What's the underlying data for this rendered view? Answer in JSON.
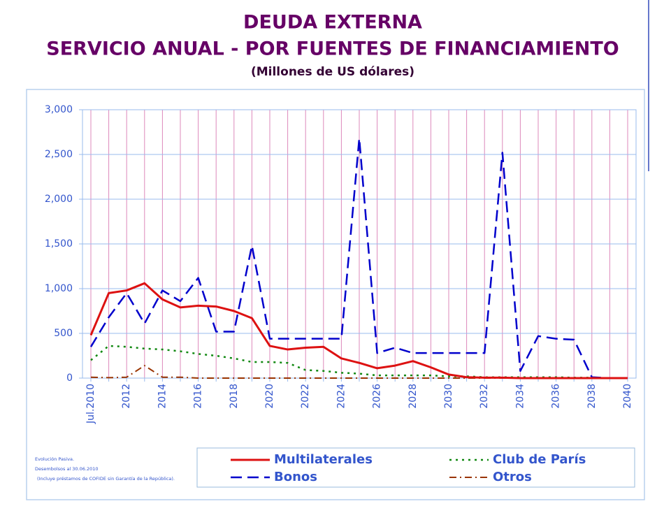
{
  "chart_data": {
    "type": "line",
    "title": "DEUDA EXTERNA",
    "subtitle": "SERVICIO ANUAL - POR FUENTES DE FINANCIAMIENTO",
    "unit_note": "(Millones de US dólares)",
    "categories": [
      "Jul.2010",
      null,
      "2012",
      null,
      "2014",
      null,
      "2016",
      null,
      "2018",
      null,
      "2020",
      null,
      "2022",
      null,
      "2024",
      null,
      "2026",
      null,
      "2028",
      null,
      "2030",
      null,
      "2032",
      null,
      "2034",
      null,
      "2036",
      null,
      "2038",
      null,
      "2040"
    ],
    "series": [
      {
        "name": "Multilaterales",
        "color": "#dd1111",
        "values": [
          480,
          950,
          980,
          1060,
          880,
          790,
          810,
          800,
          750,
          670,
          360,
          320,
          340,
          350,
          220,
          170,
          110,
          140,
          190,
          120,
          40,
          10,
          5,
          5,
          0,
          0,
          0,
          0,
          0,
          0,
          0
        ]
      },
      {
        "name": "Club de París",
        "color": "#118811",
        "values": [
          200,
          360,
          350,
          330,
          320,
          300,
          270,
          250,
          220,
          180,
          180,
          170,
          90,
          80,
          60,
          50,
          30,
          30,
          30,
          30,
          20,
          20,
          10,
          10,
          10,
          10,
          10,
          5,
          5,
          0,
          0
        ]
      },
      {
        "name": "Bonos",
        "color": "#0000cc",
        "values": [
          350,
          680,
          950,
          610,
          980,
          860,
          1120,
          520,
          520,
          1480,
          440,
          440,
          440,
          440,
          440,
          2680,
          280,
          340,
          280,
          280,
          280,
          280,
          280,
          2520,
          80,
          470,
          440,
          430,
          10,
          0,
          0
        ]
      },
      {
        "name": "Otros",
        "color": "#993300",
        "values": [
          10,
          5,
          10,
          140,
          10,
          10,
          0,
          0,
          0,
          0,
          0,
          0,
          0,
          0,
          0,
          0,
          0,
          0,
          0,
          0,
          0,
          0,
          0,
          0,
          0,
          0,
          0,
          0,
          0,
          0,
          0
        ]
      }
    ],
    "ylim": [
      0,
      3000
    ],
    "yticks": [
      0,
      500,
      {
        "value": 1000,
        "label": "1,000"
      },
      {
        "value": 1500,
        "label": "1,500"
      },
      {
        "value": 2000,
        "label": "2,000"
      },
      {
        "value": 2500,
        "label": "2,500"
      },
      {
        "value": 3000,
        "label": "3,000"
      }
    ],
    "grid": true,
    "notes": [
      "Evolución Pasiva.",
      "Desembolsos al 30.06.2010",
      "(Incluye préstamos de COFIDE sin Garantía de la República)."
    ]
  }
}
